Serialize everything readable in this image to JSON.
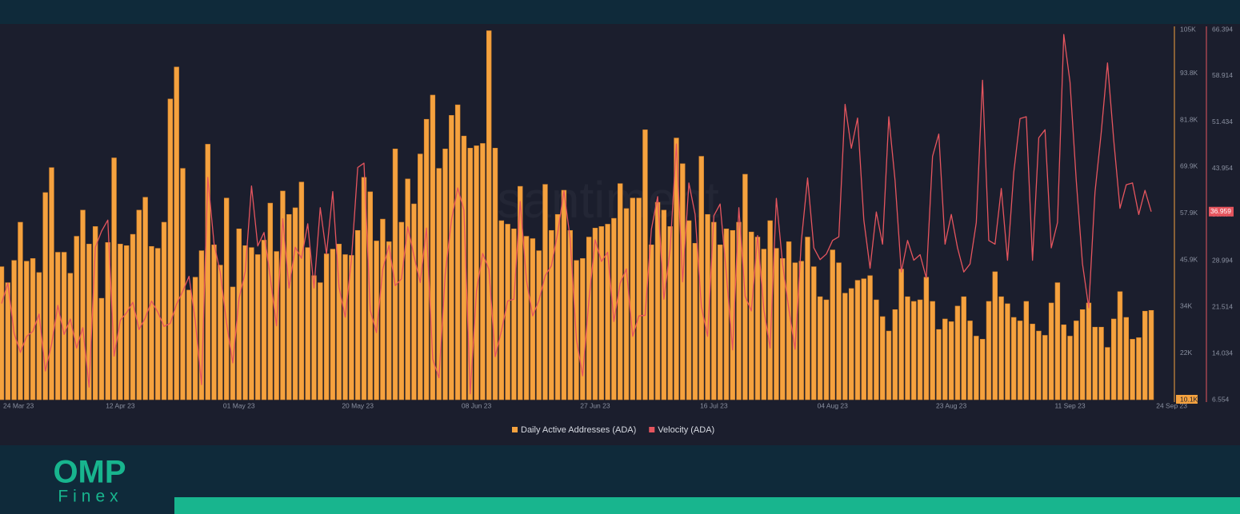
{
  "chart_data": {
    "type": "combo",
    "watermark": "santiment",
    "categories": [
      "24 Mar 23",
      null,
      null,
      null,
      null,
      null,
      null,
      null,
      null,
      null,
      null,
      null,
      null,
      null,
      null,
      null,
      null,
      null,
      null,
      "12 Apr 23",
      null,
      null,
      null,
      null,
      null,
      null,
      null,
      null,
      null,
      null,
      null,
      null,
      null,
      null,
      null,
      null,
      null,
      null,
      "01 May 23",
      null,
      null,
      null,
      null,
      null,
      null,
      null,
      null,
      null,
      null,
      null,
      null,
      null,
      null,
      null,
      null,
      null,
      null,
      "20 May 23",
      null,
      null,
      null,
      null,
      null,
      null,
      null,
      null,
      null,
      null,
      null,
      null,
      null,
      null,
      null,
      null,
      null,
      null,
      "08 Jun 23",
      null,
      null,
      null,
      null,
      null,
      null,
      null,
      null,
      null,
      null,
      null,
      null,
      null,
      null,
      null,
      null,
      null,
      null,
      "27 Jun 23",
      null,
      null,
      null,
      null,
      null,
      null,
      null,
      null,
      null,
      null,
      null,
      null,
      null,
      null,
      null,
      null,
      null,
      null,
      "16 Jul 23",
      null,
      null,
      null,
      null,
      null,
      null,
      null,
      null,
      null,
      null,
      null,
      null,
      null,
      null,
      null,
      null,
      null,
      null,
      "04 Aug 23",
      null,
      null,
      null,
      null,
      null,
      null,
      null,
      null,
      null,
      null,
      null,
      null,
      null,
      null,
      null,
      null,
      null,
      null,
      "23 Aug 23",
      null,
      null,
      null,
      null,
      null,
      null,
      null,
      null,
      null,
      null,
      null,
      null,
      null,
      null,
      null,
      null,
      null,
      null,
      "11 Sep 23",
      null,
      null,
      null,
      null,
      null,
      null,
      null,
      null,
      null,
      null,
      null,
      null,
      "24 Sep 23"
    ],
    "series": [
      {
        "name": "Daily Active Addresses (ADA)",
        "type": "bar",
        "axis": "y",
        "color": "#f5a23f",
        "values": [
          44200,
          40100,
          45800,
          55600,
          45600,
          46300,
          42700,
          63200,
          69600,
          47900,
          47900,
          42500,
          52000,
          58700,
          50000,
          54500,
          36100,
          50400,
          72100,
          50000,
          49600,
          52500,
          58700,
          62000,
          49400,
          48900,
          55600,
          87200,
          95400,
          69400,
          38200,
          41500,
          48300,
          75600,
          49800,
          44600,
          61800,
          39000,
          53900,
          49600,
          49100,
          47300,
          51000,
          60500,
          48100,
          63600,
          57600,
          59300,
          65900,
          49100,
          41900,
          40100,
          47500,
          48700,
          50000,
          47300,
          47100,
          53500,
          67100,
          63400,
          50800,
          56400,
          50600,
          74400,
          55600,
          66700,
          60300,
          73100,
          82000,
          88200,
          69400,
          74400,
          83000,
          85700,
          77700,
          74600,
          75200,
          75800,
          104700,
          74600,
          56000,
          55100,
          53900,
          64800,
          52000,
          51400,
          48300,
          65300,
          53500,
          57600,
          63800,
          53500,
          45800,
          46300,
          51800,
          54100,
          54500,
          55100,
          56600,
          65500,
          59100,
          61800,
          61800,
          79300,
          49800,
          60700,
          58700,
          54500,
          77200,
          70600,
          56000,
          50200,
          72500,
          57600,
          55600,
          49800,
          53900,
          53500,
          55600,
          67900,
          53100,
          51800,
          48700,
          56000,
          48900,
          46300,
          50600,
          45200,
          45600,
          51800,
          44200,
          36500,
          35700,
          48500,
          45200,
          37400,
          38600,
          40700,
          41100,
          41900,
          35700,
          31400,
          27700,
          33200,
          43600,
          36500,
          35300,
          35700,
          41500,
          35300,
          28100,
          30800,
          30100,
          34100,
          36500,
          30300,
          26400,
          25600,
          35300,
          42900,
          36500,
          34700,
          31200,
          30300,
          35300,
          29500,
          27700,
          26600,
          34900,
          40100,
          29300,
          26400,
          30300,
          33200,
          34900,
          28700,
          28700,
          23500,
          30800,
          37800,
          31200,
          25600,
          26000,
          32800,
          33000
        ]
      },
      {
        "name": "Velocity (ADA)",
        "type": "line",
        "axis": "y2",
        "color": "#e5555e",
        "values": [
          22.1,
          25.4,
          17.3,
          14.2,
          16.8,
          17.6,
          20.4,
          11.2,
          15.5,
          21.8,
          17.1,
          19.6,
          14.9,
          18.2,
          8.6,
          31.2,
          33.8,
          35.6,
          13.6,
          19.4,
          20.6,
          22.3,
          17.9,
          19.8,
          22.5,
          20.7,
          18.4,
          18.9,
          22.0,
          24.1,
          26.5,
          19.3,
          9.0,
          42.5,
          31.8,
          27.1,
          19.0,
          12.5,
          22.9,
          27.3,
          41.1,
          31.4,
          33.6,
          26.3,
          18.5,
          35.8,
          24.6,
          31.2,
          29.4,
          35.0,
          24.6,
          37.6,
          30.1,
          40.2,
          24.8,
          19.9,
          29.3,
          44.1,
          44.8,
          21.0,
          17.4,
          27.6,
          31.5,
          25.0,
          26.1,
          34.5,
          29.8,
          25.5,
          34.3,
          13.1,
          10.1,
          26.8,
          35.6,
          40.8,
          37.2,
          7.5,
          24.1,
          30.2,
          27.6,
          13.5,
          17.7,
          22.5,
          22.8,
          38.6,
          25.9,
          20.1,
          22.6,
          26.6,
          28.2,
          33.5,
          40.3,
          32.6,
          16.3,
          10.4,
          22.6,
          32.4,
          28.9,
          30.4,
          19.2,
          25.4,
          27.7,
          16.8,
          20.1,
          20.2,
          34.1,
          39.4,
          22.8,
          30.9,
          47.9,
          25.6,
          41.6,
          36.5,
          21.6,
          16.8,
          36.3,
          38.2,
          26.9,
          14.6,
          37.6,
          23.3,
          20.9,
          33.1,
          21.1,
          14.9,
          39.1,
          28.5,
          21.2,
          14.7,
          32.2,
          42.4,
          31.1,
          29.2,
          30.1,
          32.3,
          32.9,
          54.3,
          47.2,
          52.1,
          35.6,
          27.8,
          36.9,
          31.7,
          52.3,
          42.0,
          27.2,
          32.3,
          29.1,
          30.0,
          26.2,
          45.9,
          49.5,
          31.7,
          36.5,
          31.1,
          27.2,
          28.5,
          35.2,
          58.2,
          32.3,
          31.7,
          40.7,
          29.1,
          43.3,
          52.0,
          52.3,
          29.1,
          48.9,
          50.2,
          31.1,
          35.2,
          65.6,
          57.9,
          42.0,
          28.5,
          21.4,
          40.1,
          49.8,
          61.0,
          48.5,
          37.5,
          41.3,
          41.6,
          36.5,
          40.4,
          36.959
        ]
      }
    ],
    "ylim": [
      10100,
      105000
    ],
    "yticks": [
      {
        "value": 10100,
        "label": "10.1K"
      },
      {
        "value": 22000,
        "label": "22K"
      },
      {
        "value": 34000,
        "label": "34K"
      },
      {
        "value": 45900,
        "label": "45.9K"
      },
      {
        "value": 57900,
        "label": "57.9K"
      },
      {
        "value": 69900,
        "label": "69.9K"
      },
      {
        "value": 81800,
        "label": "81.8K"
      },
      {
        "value": 93800,
        "label": "93.8K"
      },
      {
        "value": 105000,
        "label": "105K"
      }
    ],
    "y2lim": [
      6.554,
      66.394
    ],
    "y2ticks": [
      6.554,
      14.034,
      21.514,
      28.994,
      36.474,
      43.954,
      51.434,
      58.914,
      66.394
    ],
    "legend": "bottom"
  },
  "logo": {
    "title": "OMP",
    "subtitle": "Finex"
  }
}
